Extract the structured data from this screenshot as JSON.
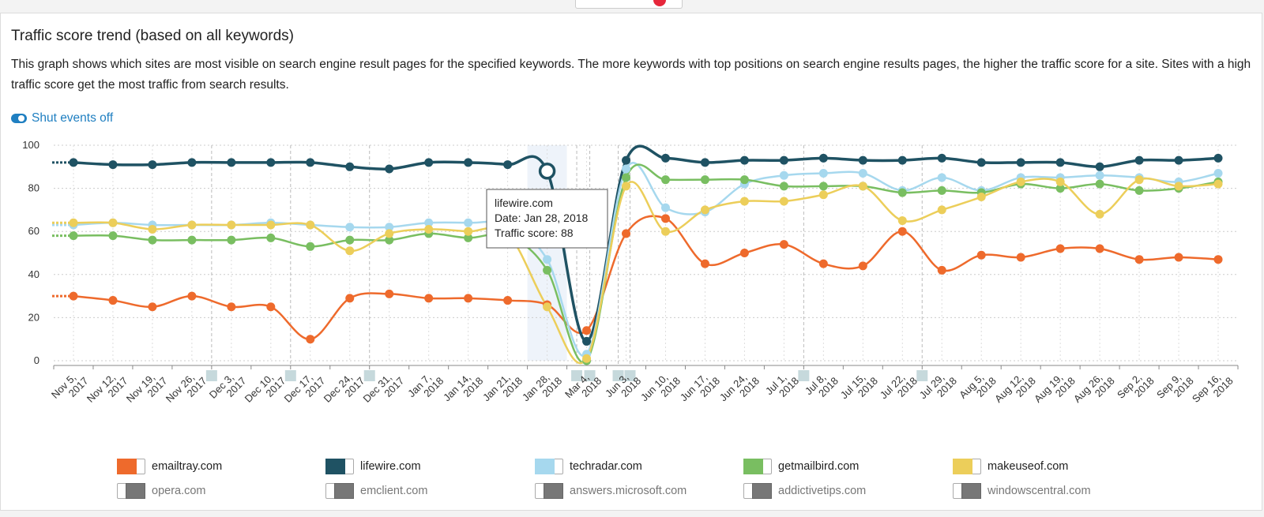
{
  "header": {
    "title": "Traffic score trend (based on all keywords)",
    "description": "This graph shows which sites are most visible on search engine result pages for the specified keywords. The more keywords with top positions on search engine results pages, the higher the traffic score for a site. Sites with a high traffic score get the most traffic from search results.",
    "toggle_label": "Shut events off"
  },
  "tooltip": {
    "site": "lifewire.com",
    "date": "Date: Jan 28, 2018",
    "score": "Traffic score: 88"
  },
  "chart_data": {
    "type": "line",
    "title": "",
    "xlabel": "",
    "ylabel": "",
    "ylim": [
      0,
      100
    ],
    "yticks": [
      0,
      20,
      40,
      60,
      80,
      100
    ],
    "grid": true,
    "x": [
      "Nov 5, 2017",
      "Nov 12, 2017",
      "Nov 19, 2017",
      "Nov 26, 2017",
      "Dec 3, 2017",
      "Dec 10, 2017",
      "Dec 17, 2017",
      "Dec 24, 2017",
      "Dec 31, 2017",
      "Jan 7, 2018",
      "Jan 14, 2018",
      "Jan 21, 2018",
      "Jan 28, 2018",
      "Mar 4, 2018",
      "Jun 3, 2018",
      "Jun 10, 2018",
      "Jun 17, 2018",
      "Jun 24, 2018",
      "Jul 1, 2018",
      "Jul 8, 2018",
      "Jul 15, 2018",
      "Jul 22, 2018",
      "Jul 29, 2018",
      "Aug 5, 2018",
      "Aug 12, 2018",
      "Aug 19, 2018",
      "Aug 26, 2018",
      "Sep 2, 2018",
      "Sep 9, 2018",
      "Sep 16, 2018"
    ],
    "series": [
      {
        "name": "emailtray.com",
        "color": "#ee6a2c",
        "values": [
          30,
          28,
          25,
          30,
          25,
          25,
          10,
          29,
          31,
          29,
          29,
          28,
          26,
          14,
          59,
          66,
          45,
          50,
          54,
          45,
          44,
          60,
          42,
          49,
          48,
          52,
          52,
          47,
          48,
          47
        ]
      },
      {
        "name": "lifewire.com",
        "color": "#1f5263",
        "values": [
          92,
          91,
          91,
          92,
          92,
          92,
          92,
          90,
          89,
          92,
          92,
          91,
          88,
          9,
          93,
          94,
          92,
          93,
          93,
          94,
          93,
          93,
          94,
          92,
          92,
          92,
          90,
          93,
          93,
          94
        ]
      },
      {
        "name": "techradar.com",
        "color": "#a6d8ee",
        "values": [
          63,
          64,
          63,
          63,
          63,
          64,
          63,
          62,
          62,
          64,
          64,
          63,
          47,
          3,
          89,
          71,
          69,
          82,
          86,
          87,
          87,
          79,
          85,
          79,
          85,
          85,
          86,
          85,
          83,
          87
        ]
      },
      {
        "name": "getmailbird.com",
        "color": "#79be61",
        "values": [
          58,
          58,
          56,
          56,
          56,
          57,
          53,
          56,
          56,
          59,
          57,
          58,
          42,
          0,
          85,
          84,
          84,
          84,
          81,
          81,
          81,
          78,
          79,
          78,
          82,
          80,
          82,
          79,
          80,
          83
        ]
      },
      {
        "name": "makeuseof.com",
        "color": "#ecce5a",
        "values": [
          64,
          64,
          61,
          63,
          63,
          63,
          63,
          51,
          59,
          61,
          60,
          59,
          25,
          1,
          81,
          60,
          70,
          74,
          74,
          77,
          81,
          65,
          70,
          76,
          83,
          83,
          68,
          84,
          81,
          82
        ]
      }
    ],
    "disabled_series": [
      {
        "name": "opera.com"
      },
      {
        "name": "emclient.com"
      },
      {
        "name": "answers.microsoft.com"
      },
      {
        "name": "addictivetips.com"
      },
      {
        "name": "windowscentral.com"
      }
    ],
    "highlighted_point": {
      "series": "lifewire.com",
      "x": "Jan 28, 2018",
      "value": 88
    },
    "legend": "bottom"
  }
}
